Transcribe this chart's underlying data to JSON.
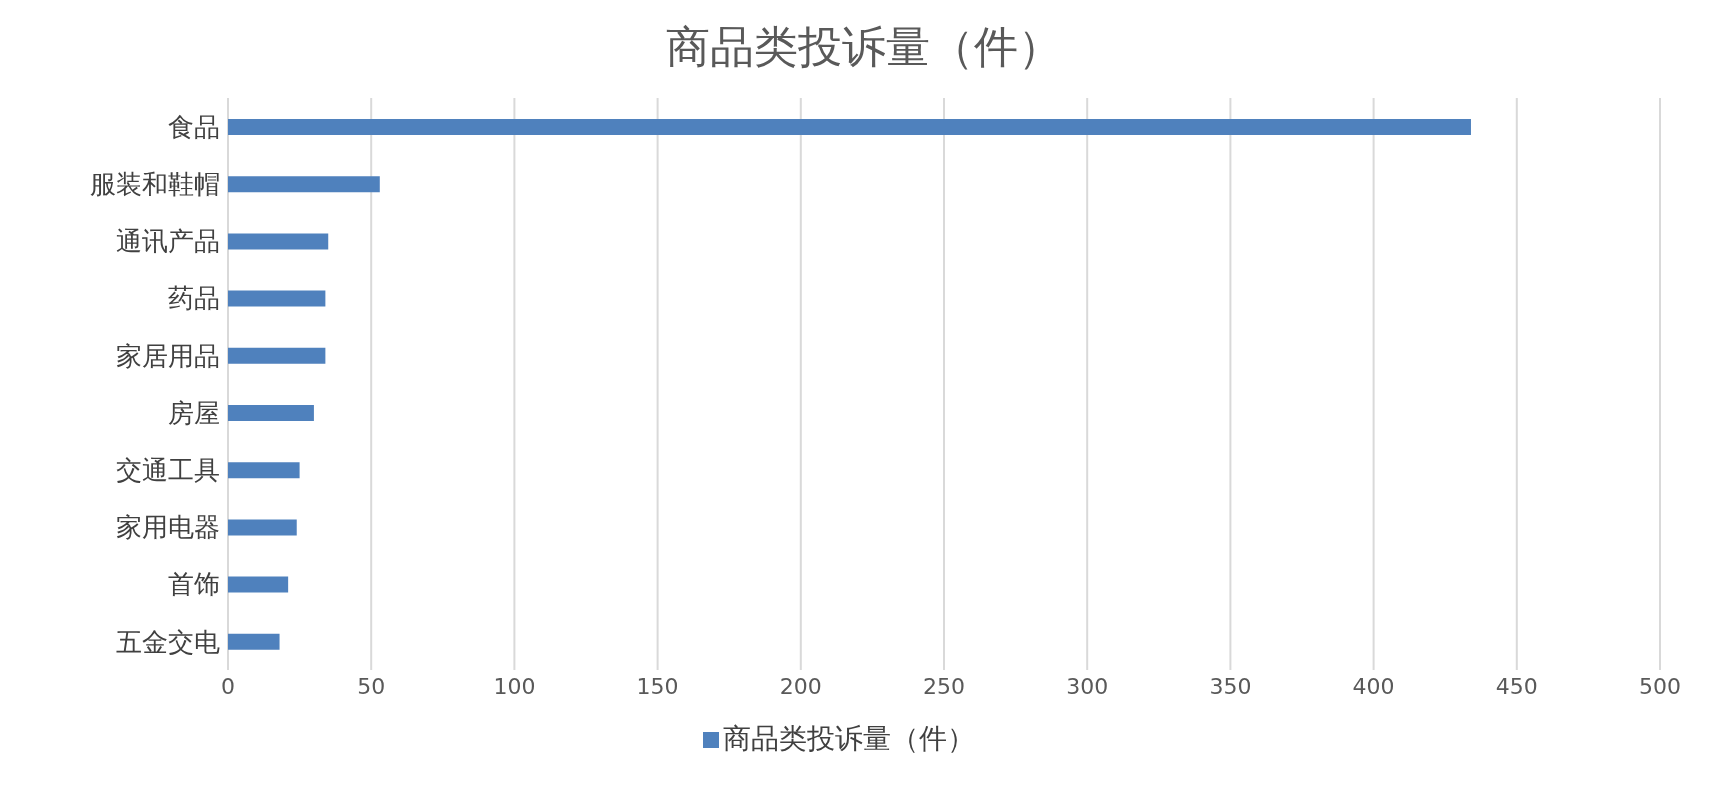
{
  "chart_data": {
    "type": "bar",
    "orientation": "horizontal",
    "title": "商品类投诉量（件）",
    "categories": [
      "食品",
      "服装和鞋帽",
      "通讯产品",
      "药品",
      "家居用品",
      "房屋",
      "交通工具",
      "家用电器",
      "首饰",
      "五金交电"
    ],
    "series": [
      {
        "name": "商品类投诉量（件）",
        "color": "#4f81bd",
        "values": [
          434,
          53,
          35,
          34,
          34,
          30,
          25,
          24,
          21,
          18
        ]
      }
    ],
    "xlim": [
      0,
      500
    ],
    "xticks": [
      0,
      50,
      100,
      150,
      200,
      250,
      300,
      350,
      400,
      450,
      500
    ],
    "grid": "x",
    "legend": "bottom"
  }
}
